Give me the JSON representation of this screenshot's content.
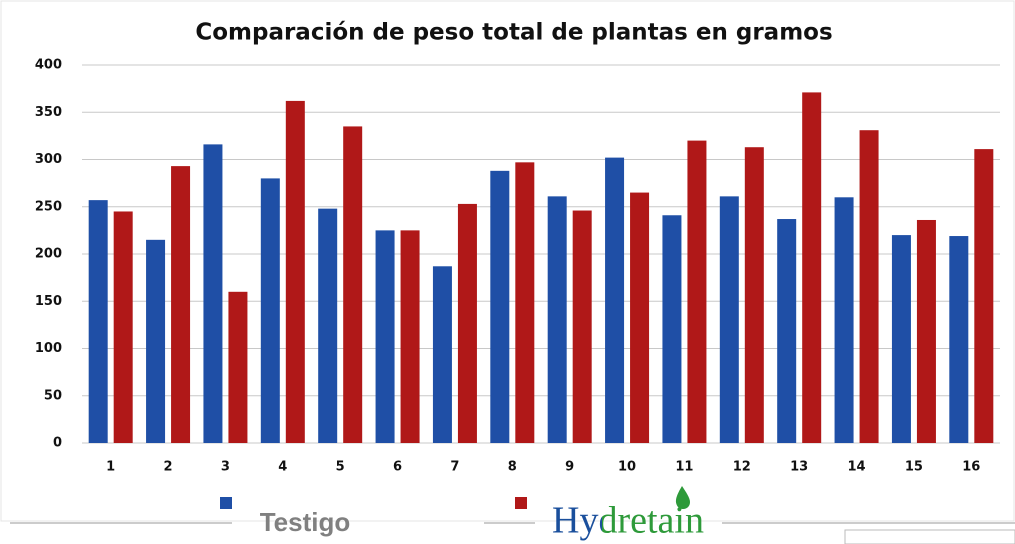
{
  "chart_data": {
    "type": "bar",
    "title": "Comparación de peso total de plantas en gramos",
    "categories": [
      "1",
      "2",
      "3",
      "4",
      "5",
      "6",
      "7",
      "8",
      "9",
      "10",
      "11",
      "12",
      "13",
      "14",
      "15",
      "16"
    ],
    "series": [
      {
        "name": "Testigo",
        "color": "#1f4fa6",
        "values": [
          257,
          215,
          316,
          280,
          248,
          225,
          187,
          288,
          261,
          302,
          241,
          261,
          237,
          260,
          220,
          219
        ]
      },
      {
        "name": "Hydretain",
        "color": "#b01818",
        "values": [
          245,
          293,
          160,
          362,
          335,
          225,
          253,
          297,
          246,
          265,
          320,
          313,
          371,
          331,
          236,
          311
        ]
      }
    ],
    "ylim": [
      0,
      400
    ],
    "yticks": [
      0,
      50,
      100,
      150,
      200,
      250,
      300,
      350,
      400
    ],
    "grid": true,
    "legend": "bottom"
  }
}
